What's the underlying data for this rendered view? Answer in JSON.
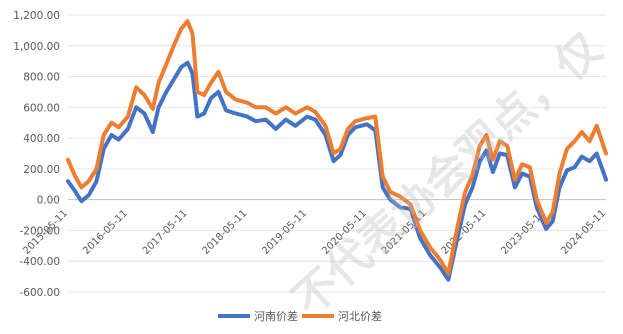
{
  "chart_data": {
    "type": "line",
    "title": "",
    "xlabel": "",
    "ylabel": "",
    "ylim": [
      -600,
      1200
    ],
    "y_ticks": [
      -600,
      -400,
      -200,
      0,
      200,
      400,
      600,
      800,
      1000,
      1200
    ],
    "y_tick_labels": [
      "-600.00",
      "-400.00",
      "-200.00",
      "0.00",
      "200.00",
      "400.00",
      "600.00",
      "800.00",
      "1,000.00",
      "1,200.00"
    ],
    "x_range": [
      "2015-05-11",
      "2024-05-11"
    ],
    "x_tick_labels": [
      "2015-05-11",
      "2016-05-11",
      "2017-05-11",
      "2018-05-11",
      "2019-05-11",
      "2020-05-11",
      "2021-05-11",
      "2022-05-11",
      "2023-05-11",
      "2024-05-11"
    ],
    "grid": true,
    "legend_position": "bottom",
    "series": [
      {
        "name": "河南价差",
        "color": "#4472C4",
        "points": [
          [
            "2015-05-11",
            120
          ],
          [
            "2015-06-20",
            60
          ],
          [
            "2015-08-01",
            -10
          ],
          [
            "2015-09-15",
            30
          ],
          [
            "2015-11-01",
            120
          ],
          [
            "2015-12-15",
            330
          ],
          [
            "2016-02-01",
            420
          ],
          [
            "2016-03-15",
            390
          ],
          [
            "2016-05-11",
            460
          ],
          [
            "2016-07-01",
            600
          ],
          [
            "2016-08-20",
            560
          ],
          [
            "2016-10-10",
            440
          ],
          [
            "2016-11-15",
            600
          ],
          [
            "2017-01-01",
            700
          ],
          [
            "2017-02-15",
            780
          ],
          [
            "2017-04-01",
            860
          ],
          [
            "2017-05-11",
            890
          ],
          [
            "2017-06-10",
            820
          ],
          [
            "2017-07-10",
            540
          ],
          [
            "2017-08-20",
            560
          ],
          [
            "2017-10-01",
            660
          ],
          [
            "2017-11-15",
            700
          ],
          [
            "2018-01-01",
            580
          ],
          [
            "2018-03-01",
            560
          ],
          [
            "2018-05-11",
            540
          ],
          [
            "2018-07-01",
            510
          ],
          [
            "2018-09-01",
            520
          ],
          [
            "2018-11-01",
            460
          ],
          [
            "2019-01-01",
            520
          ],
          [
            "2019-03-01",
            480
          ],
          [
            "2019-05-11",
            540
          ],
          [
            "2019-07-01",
            520
          ],
          [
            "2019-09-01",
            420
          ],
          [
            "2019-10-20",
            250
          ],
          [
            "2019-12-01",
            290
          ],
          [
            "2020-01-15",
            420
          ],
          [
            "2020-03-01",
            470
          ],
          [
            "2020-05-11",
            490
          ],
          [
            "2020-07-01",
            450
          ],
          [
            "2020-08-15",
            80
          ],
          [
            "2020-10-01",
            0
          ],
          [
            "2020-12-01",
            -50
          ],
          [
            "2021-02-01",
            -60
          ],
          [
            "2021-04-01",
            -250
          ],
          [
            "2021-06-01",
            -360
          ],
          [
            "2021-08-01",
            -440
          ],
          [
            "2021-09-20",
            -520
          ],
          [
            "2021-11-15",
            -250
          ],
          [
            "2022-01-01",
            -30
          ],
          [
            "2022-02-15",
            80
          ],
          [
            "2022-04-01",
            250
          ],
          [
            "2022-05-11",
            320
          ],
          [
            "2022-06-20",
            180
          ],
          [
            "2022-08-01",
            300
          ],
          [
            "2022-09-15",
            290
          ],
          [
            "2022-11-01",
            80
          ],
          [
            "2022-12-15",
            170
          ],
          [
            "2023-02-01",
            150
          ],
          [
            "2023-03-15",
            -50
          ],
          [
            "2023-05-11",
            -190
          ],
          [
            "2023-06-20",
            -140
          ],
          [
            "2023-08-01",
            80
          ],
          [
            "2023-09-15",
            190
          ],
          [
            "2023-11-01",
            210
          ],
          [
            "2023-12-15",
            280
          ],
          [
            "2024-02-01",
            250
          ],
          [
            "2024-03-15",
            300
          ],
          [
            "2024-05-11",
            130
          ]
        ]
      },
      {
        "name": "河北价差",
        "color": "#ED7D31",
        "points": [
          [
            "2015-05-11",
            260
          ],
          [
            "2015-06-20",
            160
          ],
          [
            "2015-08-01",
            80
          ],
          [
            "2015-09-15",
            120
          ],
          [
            "2015-11-01",
            200
          ],
          [
            "2015-12-15",
            420
          ],
          [
            "2016-02-01",
            500
          ],
          [
            "2016-03-15",
            470
          ],
          [
            "2016-05-11",
            540
          ],
          [
            "2016-07-01",
            730
          ],
          [
            "2016-08-20",
            680
          ],
          [
            "2016-10-10",
            590
          ],
          [
            "2016-11-15",
            760
          ],
          [
            "2017-01-01",
            880
          ],
          [
            "2017-02-15",
            1000
          ],
          [
            "2017-04-01",
            1110
          ],
          [
            "2017-05-11",
            1160
          ],
          [
            "2017-06-10",
            1080
          ],
          [
            "2017-07-10",
            700
          ],
          [
            "2017-08-20",
            680
          ],
          [
            "2017-10-01",
            760
          ],
          [
            "2017-11-15",
            830
          ],
          [
            "2018-01-01",
            700
          ],
          [
            "2018-03-01",
            650
          ],
          [
            "2018-05-11",
            630
          ],
          [
            "2018-07-01",
            600
          ],
          [
            "2018-09-01",
            600
          ],
          [
            "2018-11-01",
            560
          ],
          [
            "2019-01-01",
            600
          ],
          [
            "2019-03-01",
            560
          ],
          [
            "2019-05-11",
            600
          ],
          [
            "2019-07-01",
            570
          ],
          [
            "2019-09-01",
            480
          ],
          [
            "2019-10-20",
            300
          ],
          [
            "2019-12-01",
            330
          ],
          [
            "2020-01-15",
            460
          ],
          [
            "2020-03-01",
            510
          ],
          [
            "2020-05-11",
            530
          ],
          [
            "2020-07-01",
            540
          ],
          [
            "2020-08-15",
            150
          ],
          [
            "2020-10-01",
            50
          ],
          [
            "2020-12-01",
            20
          ],
          [
            "2021-02-01",
            -30
          ],
          [
            "2021-04-01",
            -200
          ],
          [
            "2021-06-01",
            -310
          ],
          [
            "2021-08-01",
            -390
          ],
          [
            "2021-09-20",
            -480
          ],
          [
            "2021-11-15",
            -180
          ],
          [
            "2022-01-01",
            50
          ],
          [
            "2022-02-15",
            160
          ],
          [
            "2022-04-01",
            350
          ],
          [
            "2022-05-11",
            420
          ],
          [
            "2022-06-20",
            260
          ],
          [
            "2022-08-01",
            380
          ],
          [
            "2022-09-15",
            350
          ],
          [
            "2022-11-01",
            130
          ],
          [
            "2022-12-15",
            230
          ],
          [
            "2023-02-01",
            210
          ],
          [
            "2023-03-15",
            0
          ],
          [
            "2023-05-11",
            -150
          ],
          [
            "2023-06-20",
            -80
          ],
          [
            "2023-08-01",
            170
          ],
          [
            "2023-09-15",
            330
          ],
          [
            "2023-11-01",
            380
          ],
          [
            "2023-12-15",
            440
          ],
          [
            "2024-02-01",
            380
          ],
          [
            "2024-03-15",
            480
          ],
          [
            "2024-05-11",
            300
          ]
        ]
      }
    ],
    "watermark": "不代表协会观点，仅"
  }
}
